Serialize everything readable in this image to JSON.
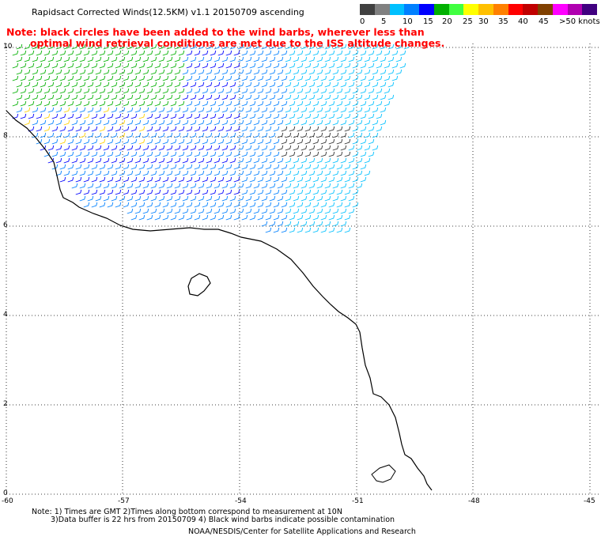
{
  "title": "Rapidsact Corrected Winds(12.5KM) v1.1 20150709 ascending",
  "note": {
    "line1": "Note: black circles have been added to the wind barbs, wherever less than",
    "line2": "optimal wind retrieval conditions are met due to the ISS altitude changes."
  },
  "legend": {
    "labels": [
      "0",
      "5",
      "10",
      "15",
      "20",
      "25",
      "30",
      "35",
      "40",
      "45",
      ">50 knots"
    ],
    "colors": [
      "#404040",
      "#808080",
      "#00c0ff",
      "#0080ff",
      "#0000ff",
      "#00b000",
      "#40ff40",
      "#ffff00",
      "#ffc000",
      "#ff8000",
      "#ff0000",
      "#c00000",
      "#804000",
      "#ff00ff",
      "#b000b0",
      "#400080"
    ]
  },
  "map": {
    "lat_labels": [
      "10",
      "8",
      "6",
      "4",
      "2",
      "0"
    ],
    "lon_labels": [
      "-60",
      "-57",
      "-54",
      "-51",
      "-48",
      "-45"
    ]
  },
  "footer": {
    "line1": "Note: 1) Times are GMT 2)Times along bottom correspond to measurement at 10N",
    "line2": "3)Data buffer is 22 hrs from 20150709 4) Black wind barbs indicate possible contamination",
    "line3": "NOAA/NESDIS/Center for Satellite Applications and Research"
  }
}
